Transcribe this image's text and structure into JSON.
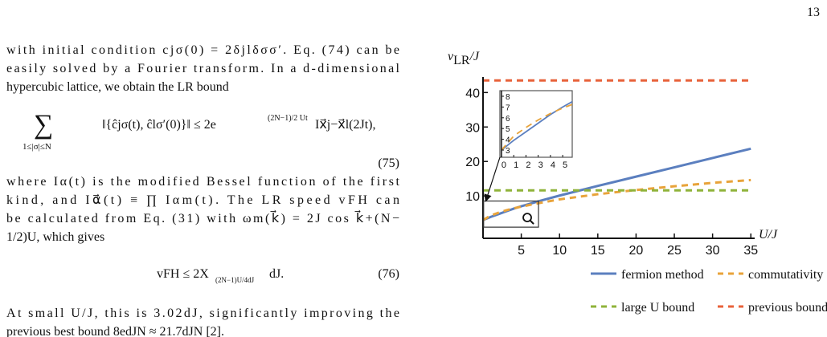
{
  "page_number": "13",
  "body": {
    "para1": [
      "with initial condition cjσ(0) = 2δjlδσσ′. Eq. (74) can be",
      "easily solved by a Fourier transform. In a d-dimensional",
      "hypercubic lattice, we obtain the LR bound"
    ],
    "eq75": {
      "sum": "∑",
      "range": "1≤|σ|≤N",
      "lhs": "‖{ĉjσ(t), ĉlσ′(0)}‖ ≤ 2e",
      "exponent": "(2N−1)/2 Ut",
      "rhs": "Ix⃗j−x⃗l(2Jt),",
      "number": "(75)"
    },
    "para2": [
      "where Iα(t) is the modified Bessel function of the first",
      "kind, and Iα⃗(t) ≡ ∏ Iαm(t). The LR speed vFH can",
      "be calculated from Eq. (31) with ωm(k⃗) = 2J cos k⃗+(N−",
      "1/2)U, which gives"
    ],
    "eq76": {
      "lhs": "vFH ≤ 2X",
      "sub": "(2N−1)U/4dJ",
      "rhs": "dJ.",
      "number": "(76)"
    },
    "para3": [
      "At small U/J, this is 3.02dJ, significantly improving the",
      "previous best bound 8edJN ≈ 21.7dJN [2]."
    ]
  },
  "chart_data": {
    "type": "line",
    "y_label": {
      "symbol": "v",
      "subscript": "LR",
      "rest": "/J"
    },
    "x_label": "U/J",
    "x": [
      0,
      1,
      2,
      3,
      4,
      5,
      7.5,
      10,
      15,
      20,
      25,
      30,
      35
    ],
    "series": [
      {
        "name": "fermion method",
        "color": "#5b7fbf",
        "dash": "solid",
        "values": [
          3,
          3.9,
          4.7,
          5.5,
          6.3,
          7.0,
          8.6,
          10.1,
          12.9,
          15.6,
          18.3,
          21,
          23.7
        ]
      },
      {
        "name": "commutativity graph",
        "color": "#e8a33a",
        "dash": "dashed",
        "values": [
          3,
          4.3,
          5.1,
          5.8,
          6.4,
          6.9,
          8,
          9,
          10.5,
          11.7,
          12.8,
          13.8,
          14.6
        ]
      },
      {
        "name": "large U bound",
        "color": "#8fb33a",
        "dash": "dashed",
        "values": [
          11.6,
          11.6,
          11.6,
          11.6,
          11.6,
          11.6,
          11.6,
          11.6,
          11.6,
          11.6,
          11.6,
          11.6,
          11.6
        ]
      },
      {
        "name": "previous bound",
        "color": "#e8623a",
        "dash": "dashed",
        "values": [
          43.5,
          43.5,
          43.5,
          43.5,
          43.5,
          43.5,
          43.5,
          43.5,
          43.5,
          43.5,
          43.5,
          43.5,
          43.5
        ]
      }
    ],
    "xlim": [
      0,
      35.5
    ],
    "ylim": [
      -2.3,
      44.5
    ],
    "xticks": [
      5,
      10,
      15,
      20,
      25,
      30,
      35
    ],
    "yticks": [
      10,
      20,
      30,
      40
    ],
    "inset": {
      "xlim": [
        -0.13,
        5.78
      ],
      "ylim": [
        2.33,
        8.52
      ],
      "xticks": [
        0,
        1,
        2,
        3,
        4,
        5
      ],
      "yticks": [
        3,
        4,
        5,
        6,
        7,
        8
      ]
    }
  }
}
